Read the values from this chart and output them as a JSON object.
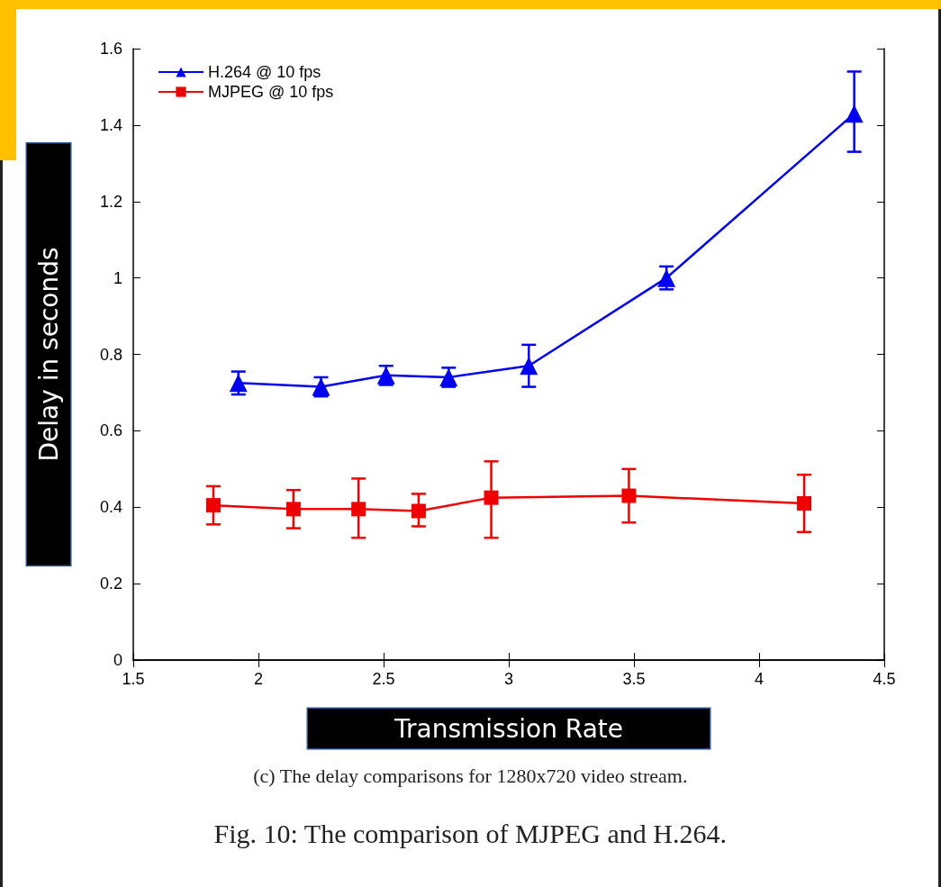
{
  "chart_data": {
    "type": "line",
    "xlabel": "Transmission Rate",
    "ylabel": "Delay in seconds",
    "annotations": [
      "(c) The delay comparisons for 1280x720 video stream.",
      "Fig. 10: The comparison of MJPEG and H.264."
    ],
    "xlim": [
      1.5,
      4.5
    ],
    "xticks": [
      1.5,
      2,
      2.5,
      3,
      3.5,
      4,
      4.5
    ],
    "ylim": [
      0,
      1.6
    ],
    "yticks": [
      0,
      0.2,
      0.4,
      0.6,
      0.8,
      1,
      1.2,
      1.4,
      1.6
    ],
    "grid": false,
    "legend": "top left",
    "series": [
      {
        "name": "H.264 @ 10 fps",
        "color": "#0000ee",
        "marker": "triangle",
        "x": [
          1.92,
          2.25,
          2.51,
          2.76,
          3.08,
          3.63,
          4.38
        ],
        "values": [
          0.725,
          0.715,
          0.745,
          0.74,
          0.77,
          1.0,
          1.43
        ],
        "errors": [
          0.03,
          0.025,
          0.025,
          0.025,
          [
            0.715,
            0.825
          ],
          0.03,
          [
            1.33,
            1.54
          ]
        ]
      },
      {
        "name": "MJPEG @ 10 fps",
        "color": "#ee0000",
        "marker": "square",
        "x": [
          1.82,
          2.14,
          2.4,
          2.64,
          2.93,
          3.48,
          4.18
        ],
        "values": [
          0.405,
          0.395,
          0.395,
          0.39,
          0.425,
          0.43,
          0.41
        ],
        "errors": [
          [
            0.355,
            0.455
          ],
          [
            0.345,
            0.445
          ],
          [
            0.32,
            0.475
          ],
          [
            0.35,
            0.435
          ],
          [
            0.32,
            0.52
          ],
          [
            0.36,
            0.5
          ],
          [
            0.335,
            0.485
          ]
        ]
      }
    ]
  }
}
